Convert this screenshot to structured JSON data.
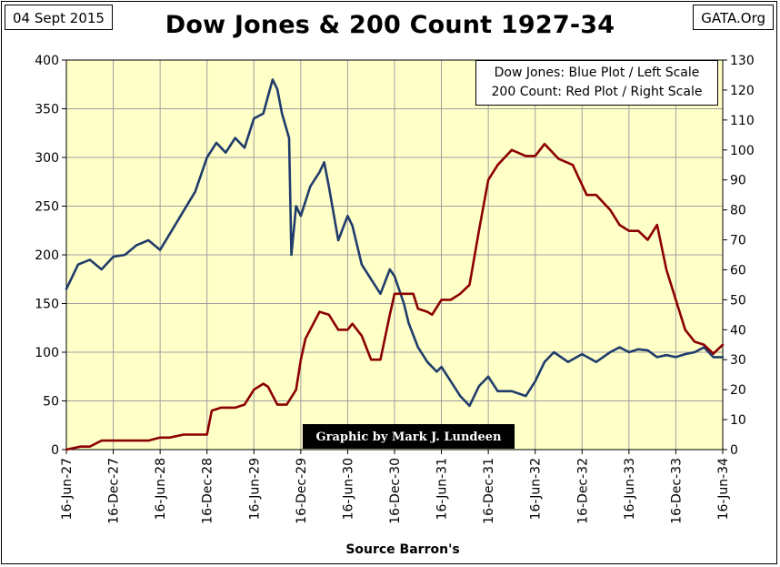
{
  "header": {
    "date_stamp": "04 Sept 2015",
    "source_stamp": "GATA.Org",
    "title": "Dow Jones & 200 Count 1927-34"
  },
  "legend": {
    "line1": "Dow Jones: Blue Plot / Left Scale",
    "line2": "200 Count: Red Plot / Right Scale"
  },
  "credit": "Graphic by Mark J. Lundeen",
  "footer": {
    "source": "Source Barron's"
  },
  "colors": {
    "plot_background": "#ffffc8",
    "dow_line": "#1f3c6b",
    "count_line": "#8b0000",
    "grid": "#a0a0a0"
  },
  "chart_data": {
    "type": "line",
    "title": "Dow Jones & 200 Count 1927-34",
    "x_tick_labels": [
      "16-Jun-27",
      "16-Dec-27",
      "16-Jun-28",
      "16-Dec-28",
      "16-Jun-29",
      "16-Dec-29",
      "16-Jun-30",
      "16-Dec-30",
      "16-Jun-31",
      "16-Dec-31",
      "16-Jun-32",
      "16-Dec-32",
      "16-Jun-33",
      "16-Dec-33",
      "16-Jun-34"
    ],
    "left_axis": {
      "min": 0,
      "max": 400,
      "step": 50,
      "ticks": [
        "0",
        "50",
        "100",
        "150",
        "200",
        "250",
        "300",
        "350",
        "400"
      ]
    },
    "right_axis": {
      "min": 0,
      "max": 130,
      "step": 10,
      "ticks": [
        "0",
        "10",
        "20",
        "30",
        "40",
        "50",
        "60",
        "70",
        "80",
        "90",
        "100",
        "110",
        "120",
        "130"
      ]
    },
    "grid": true,
    "series": [
      {
        "name": "Dow Jones",
        "axis": "left",
        "color": "#1f3c6b",
        "x": [
          0,
          0.25,
          0.5,
          0.75,
          1,
          1.25,
          1.5,
          1.75,
          2,
          2.25,
          2.5,
          2.75,
          3,
          3.2,
          3.4,
          3.6,
          3.8,
          4,
          4.2,
          4.4,
          4.5,
          4.6,
          4.75,
          4.8,
          4.9,
          5,
          5.2,
          5.4,
          5.5,
          5.6,
          5.8,
          6,
          6.1,
          6.3,
          6.5,
          6.7,
          6.9,
          7,
          7.2,
          7.3,
          7.5,
          7.7,
          7.9,
          8,
          8.2,
          8.4,
          8.6,
          8.8,
          9,
          9.2,
          9.5,
          9.8,
          10,
          10.2,
          10.4,
          10.7,
          11,
          11.3,
          11.6,
          11.8,
          12,
          12.2,
          12.4,
          12.6,
          12.8,
          13,
          13.2,
          13.4,
          13.6,
          13.8,
          14
        ],
        "y": [
          165,
          190,
          195,
          185,
          198,
          200,
          210,
          215,
          205,
          225,
          245,
          265,
          300,
          315,
          305,
          320,
          310,
          340,
          345,
          380,
          370,
          345,
          320,
          200,
          250,
          240,
          270,
          285,
          295,
          270,
          215,
          240,
          230,
          190,
          175,
          160,
          185,
          178,
          150,
          130,
          105,
          90,
          80,
          85,
          70,
          55,
          45,
          65,
          75,
          60,
          60,
          55,
          70,
          90,
          100,
          90,
          98,
          90,
          100,
          105,
          100,
          103,
          102,
          95,
          97,
          95,
          98,
          100,
          105,
          95,
          95
        ]
      },
      {
        "name": "200 Count",
        "axis": "right",
        "color": "#8b0000",
        "x": [
          0,
          0.3,
          0.5,
          0.75,
          1,
          1.25,
          1.5,
          1.75,
          2,
          2.2,
          2.5,
          2.75,
          3,
          3.1,
          3.3,
          3.6,
          3.8,
          4,
          4.2,
          4.3,
          4.5,
          4.7,
          4.9,
          5,
          5.1,
          5.2,
          5.4,
          5.6,
          5.8,
          6,
          6.1,
          6.3,
          6.5,
          6.7,
          6.9,
          7,
          7.2,
          7.4,
          7.5,
          7.7,
          7.8,
          8,
          8.2,
          8.4,
          8.6,
          8.8,
          9,
          9.2,
          9.5,
          9.8,
          10,
          10.2,
          10.5,
          10.8,
          11.1,
          11.3,
          11.6,
          11.8,
          12,
          12.2,
          12.4,
          12.6,
          12.8,
          13,
          13.2,
          13.4,
          13.6,
          13.8,
          14
        ],
        "y": [
          0,
          1,
          1,
          3,
          3,
          3,
          3,
          3,
          4,
          4,
          5,
          5,
          5,
          13,
          14,
          14,
          15,
          20,
          22,
          21,
          15,
          15,
          20,
          30,
          37,
          40,
          46,
          45,
          40,
          40,
          42,
          38,
          30,
          30,
          45,
          52,
          52,
          52,
          47,
          46,
          45,
          50,
          50,
          52,
          55,
          73,
          90,
          95,
          100,
          98,
          98,
          102,
          97,
          95,
          85,
          85,
          80,
          75,
          73,
          73,
          70,
          75,
          60,
          50,
          40,
          36,
          35,
          32,
          35
        ]
      }
    ]
  }
}
